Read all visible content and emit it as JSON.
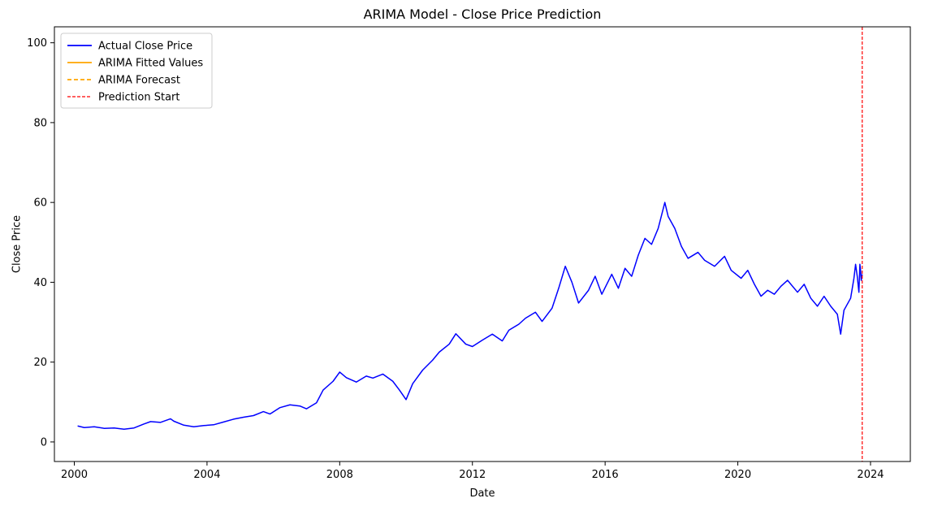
{
  "chart_data": {
    "type": "line",
    "title": "ARIMA Model - Close Price Prediction",
    "xlabel": "Date",
    "ylabel": "Close Price",
    "xlim": [
      1999.4,
      2025.2
    ],
    "ylim": [
      -4.9,
      104
    ],
    "x_ticks": [
      2000,
      2004,
      2008,
      2012,
      2016,
      2020,
      2024
    ],
    "x_tick_labels": [
      "2000",
      "2004",
      "2008",
      "2012",
      "2016",
      "2020",
      "2024"
    ],
    "y_ticks": [
      0,
      20,
      40,
      60,
      80,
      100
    ],
    "y_tick_labels": [
      "0",
      "20",
      "40",
      "60",
      "80",
      "100"
    ],
    "grid": false,
    "legend_position": "top-left",
    "colors": {
      "actual": "#0000ff",
      "fitted": "#ffa500",
      "forecast": "#ffa500",
      "prediction_start": "#ff0000",
      "confidence_band": "#e6e6e6"
    },
    "prediction_start_x": 2023.75,
    "series": [
      {
        "name": "Actual Close Price",
        "style": "solid",
        "points": [
          [
            2000.1,
            4.0
          ],
          [
            2000.3,
            3.6
          ],
          [
            2000.6,
            3.8
          ],
          [
            2000.9,
            3.4
          ],
          [
            2001.2,
            3.5
          ],
          [
            2001.5,
            3.2
          ],
          [
            2001.8,
            3.5
          ],
          [
            2002.1,
            4.5
          ],
          [
            2002.3,
            5.1
          ],
          [
            2002.6,
            4.9
          ],
          [
            2002.9,
            5.8
          ],
          [
            2003.0,
            5.2
          ],
          [
            2003.3,
            4.2
          ],
          [
            2003.6,
            3.8
          ],
          [
            2003.9,
            4.1
          ],
          [
            2004.2,
            4.3
          ],
          [
            2004.5,
            5.0
          ],
          [
            2004.8,
            5.7
          ],
          [
            2005.1,
            6.2
          ],
          [
            2005.4,
            6.6
          ],
          [
            2005.7,
            7.6
          ],
          [
            2005.9,
            7.0
          ],
          [
            2006.2,
            8.6
          ],
          [
            2006.5,
            9.3
          ],
          [
            2006.8,
            9.0
          ],
          [
            2007.0,
            8.3
          ],
          [
            2007.3,
            9.8
          ],
          [
            2007.5,
            13.0
          ],
          [
            2007.8,
            15.2
          ],
          [
            2008.0,
            17.5
          ],
          [
            2008.2,
            16.1
          ],
          [
            2008.5,
            15.0
          ],
          [
            2008.8,
            16.5
          ],
          [
            2009.0,
            16.0
          ],
          [
            2009.3,
            17.0
          ],
          [
            2009.6,
            15.2
          ],
          [
            2009.8,
            13.0
          ],
          [
            2010.0,
            10.6
          ],
          [
            2010.2,
            14.6
          ],
          [
            2010.5,
            18.0
          ],
          [
            2010.8,
            20.5
          ],
          [
            2011.0,
            22.5
          ],
          [
            2011.3,
            24.5
          ],
          [
            2011.5,
            27.1
          ],
          [
            2011.8,
            24.5
          ],
          [
            2012.0,
            23.9
          ],
          [
            2012.3,
            25.5
          ],
          [
            2012.6,
            27.0
          ],
          [
            2012.9,
            25.3
          ],
          [
            2013.1,
            28.0
          ],
          [
            2013.4,
            29.5
          ],
          [
            2013.6,
            31.0
          ],
          [
            2013.9,
            32.5
          ],
          [
            2014.1,
            30.2
          ],
          [
            2014.4,
            33.5
          ],
          [
            2014.6,
            38.5
          ],
          [
            2014.8,
            44.0
          ],
          [
            2015.0,
            40.0
          ],
          [
            2015.2,
            34.8
          ],
          [
            2015.5,
            38.0
          ],
          [
            2015.7,
            41.5
          ],
          [
            2015.9,
            37.0
          ],
          [
            2016.2,
            42.0
          ],
          [
            2016.4,
            38.5
          ],
          [
            2016.6,
            43.5
          ],
          [
            2016.8,
            41.5
          ],
          [
            2017.0,
            46.8
          ],
          [
            2017.2,
            51.0
          ],
          [
            2017.4,
            49.5
          ],
          [
            2017.6,
            53.5
          ],
          [
            2017.8,
            60.0
          ],
          [
            2017.9,
            56.5
          ],
          [
            2018.1,
            53.5
          ],
          [
            2018.3,
            49.0
          ],
          [
            2018.5,
            46.0
          ],
          [
            2018.8,
            47.5
          ],
          [
            2019.0,
            45.5
          ],
          [
            2019.3,
            44.0
          ],
          [
            2019.6,
            46.5
          ],
          [
            2019.8,
            43.0
          ],
          [
            2020.1,
            41.0
          ],
          [
            2020.3,
            43.0
          ],
          [
            2020.5,
            39.5
          ],
          [
            2020.7,
            36.5
          ],
          [
            2020.9,
            38.0
          ],
          [
            2021.1,
            37.0
          ],
          [
            2021.3,
            39.0
          ],
          [
            2021.5,
            40.5
          ],
          [
            2021.8,
            37.5
          ],
          [
            2022.0,
            39.5
          ],
          [
            2022.2,
            36.0
          ],
          [
            2022.4,
            34.0
          ],
          [
            2022.6,
            36.5
          ],
          [
            2022.8,
            34.0
          ],
          [
            2023.0,
            32.0
          ],
          [
            2023.1,
            27.0
          ],
          [
            2023.2,
            33.0
          ],
          [
            2023.4,
            36.0
          ],
          [
            2023.5,
            41.0
          ],
          [
            2023.55,
            44.5
          ],
          [
            2023.6,
            41.5
          ],
          [
            2023.65,
            37.5
          ],
          [
            2023.68,
            44.5
          ],
          [
            2023.7,
            43.0
          ],
          [
            2023.72,
            40.5
          ],
          [
            2023.75,
            42.0
          ]
        ]
      },
      {
        "name": "ARIMA Fitted Values",
        "style": "solid",
        "points": []
      },
      {
        "name": "ARIMA Forecast",
        "style": "dashed",
        "points": []
      },
      {
        "name": "Prediction Start",
        "style": "dashed",
        "points": []
      }
    ]
  }
}
